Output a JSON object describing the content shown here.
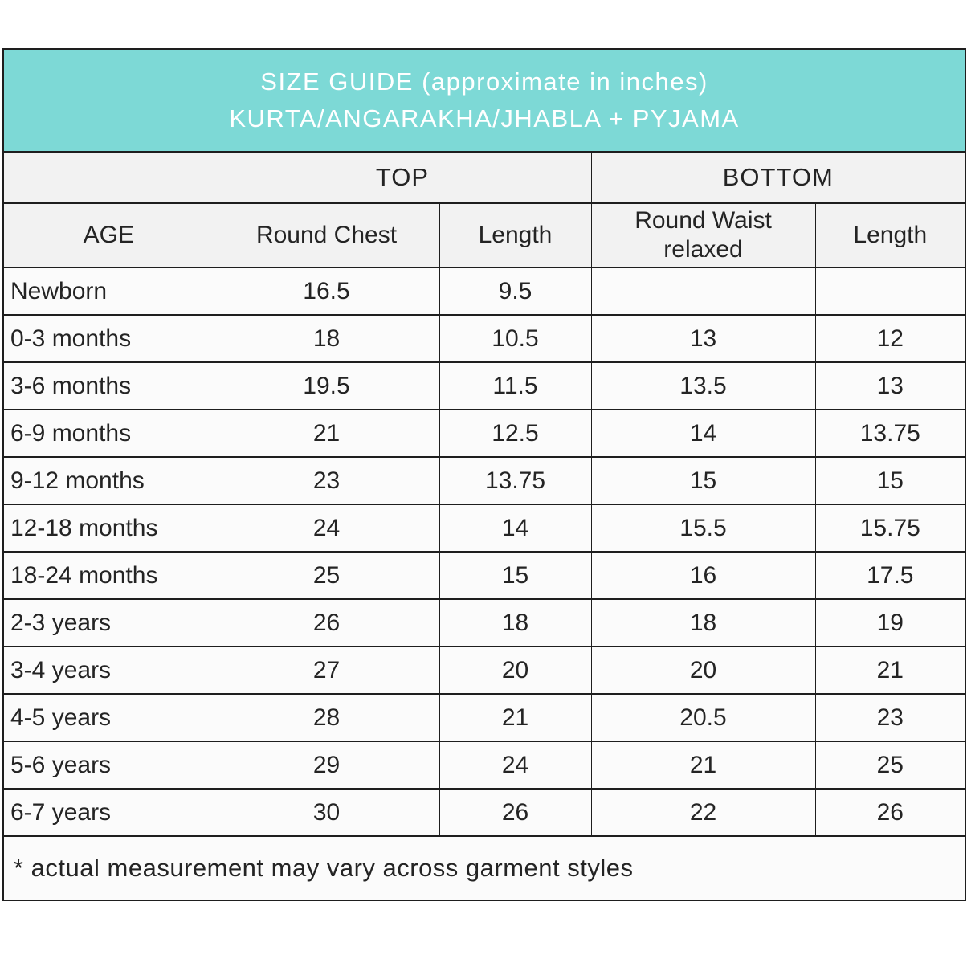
{
  "banner": {
    "line1": "SIZE GUIDE (approximate in inches)",
    "line2": "KURTA/ANGARAKHA/JHABLA + PYJAMA"
  },
  "groups": {
    "top": "TOP",
    "bottom": "BOTTOM"
  },
  "columns": {
    "age": "AGE",
    "round_chest": "Round Chest",
    "top_length": "Length",
    "round_waist": "Round Waist relaxed",
    "bottom_length": "Length"
  },
  "rows": [
    {
      "age": "Newborn",
      "chest": "16.5",
      "top_length": "9.5",
      "waist": "",
      "bottom_length": ""
    },
    {
      "age": "0-3 months",
      "chest": "18",
      "top_length": "10.5",
      "waist": "13",
      "bottom_length": "12"
    },
    {
      "age": "3-6 months",
      "chest": "19.5",
      "top_length": "11.5",
      "waist": "13.5",
      "bottom_length": "13"
    },
    {
      "age": "6-9 months",
      "chest": "21",
      "top_length": "12.5",
      "waist": "14",
      "bottom_length": "13.75"
    },
    {
      "age": "9-12 months",
      "chest": "23",
      "top_length": "13.75",
      "waist": "15",
      "bottom_length": "15"
    },
    {
      "age": "12-18 months",
      "chest": "24",
      "top_length": "14",
      "waist": "15.5",
      "bottom_length": "15.75"
    },
    {
      "age": "18-24 months",
      "chest": "25",
      "top_length": "15",
      "waist": "16",
      "bottom_length": "17.5"
    },
    {
      "age": "2-3 years",
      "chest": "26",
      "top_length": "18",
      "waist": "18",
      "bottom_length": "19"
    },
    {
      "age": "3-4 years",
      "chest": "27",
      "top_length": "20",
      "waist": "20",
      "bottom_length": "21"
    },
    {
      "age": "4-5 years",
      "chest": "28",
      "top_length": "21",
      "waist": "20.5",
      "bottom_length": "23"
    },
    {
      "age": "5-6 years",
      "chest": "29",
      "top_length": "24",
      "waist": "21",
      "bottom_length": "25"
    },
    {
      "age": "6-7 years",
      "chest": "30",
      "top_length": "26",
      "waist": "22",
      "bottom_length": "26"
    }
  ],
  "footnote": "* actual measurement may vary across garment styles",
  "colors": {
    "banner_bg": "#7DD9D6",
    "header_bg": "#F2F2F2",
    "cell_bg": "#FBFBFB",
    "border": "#1E1E1E",
    "banner_text": "#FFFFFF"
  }
}
